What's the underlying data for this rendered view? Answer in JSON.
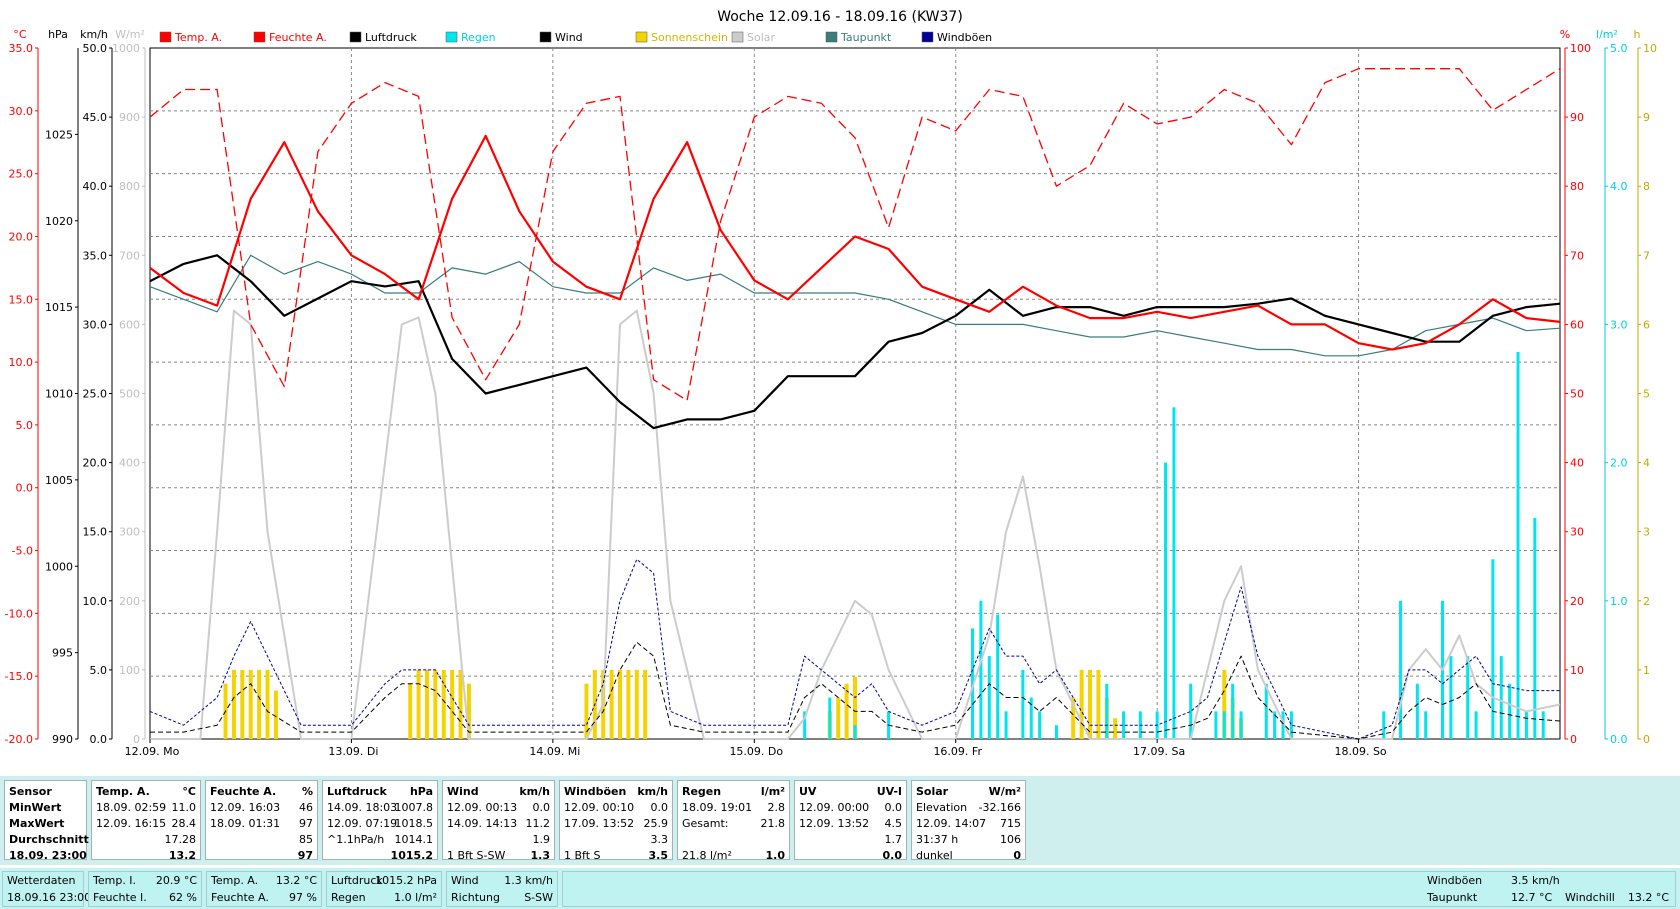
{
  "chart_data": {
    "type": "line",
    "title": "Woche 12.09.16 - 18.09.16 (KW37)",
    "x_range_hours": [
      0,
      168
    ],
    "x_tick_labels": [
      "12.09. Mo",
      "13.09. Di",
      "14.09. Mi",
      "15.09. Do",
      "16.09. Fr",
      "17.09. Sa",
      "18.09. So"
    ],
    "legend": [
      {
        "name": "Temp. A.",
        "color": "#ff0000"
      },
      {
        "name": "Feuchte A.",
        "color": "#ff0000"
      },
      {
        "name": "Luftdruck",
        "color": "#000000"
      },
      {
        "name": "Regen",
        "color": "#00e5ee"
      },
      {
        "name": "Wind",
        "color": "#000000"
      },
      {
        "name": "Sonnenschein",
        "color": "#f5d300"
      },
      {
        "name": "Solar",
        "color": "#cccccc"
      },
      {
        "name": "Taupunkt",
        "color": "#3a7d7d"
      },
      {
        "name": "Windböen",
        "color": "#000099"
      }
    ],
    "axes": {
      "temp": {
        "unit": "°C",
        "range": [
          -20,
          35
        ],
        "ticks": [
          "35.0",
          "30.0",
          "25.0",
          "20.0",
          "15.0",
          "10.0",
          "5.0",
          "0.0",
          "-5.0",
          "-10.0",
          "-15.0",
          "-20.0"
        ]
      },
      "pressure": {
        "unit": "hPa",
        "range": [
          990,
          1030
        ],
        "ticks": [
          "1025",
          "1020",
          "1015",
          "1010",
          "1005",
          "1000",
          "995",
          "990"
        ]
      },
      "wind": {
        "unit": "km/h",
        "range": [
          0,
          50
        ],
        "ticks": [
          "50.0",
          "45.0",
          "40.0",
          "35.0",
          "30.0",
          "25.0",
          "20.0",
          "15.0",
          "10.0",
          "5.0",
          "0.0"
        ]
      },
      "solar": {
        "unit": "W/m²",
        "range": [
          0,
          1000
        ],
        "ticks": [
          "1000",
          "900",
          "800",
          "700",
          "600",
          "500",
          "400",
          "300",
          "200",
          "100",
          "0"
        ]
      },
      "humidity": {
        "unit": "%",
        "range": [
          0,
          100
        ],
        "ticks": [
          "100",
          "90",
          "80",
          "70",
          "60",
          "50",
          "40",
          "30",
          "20",
          "10",
          "0"
        ]
      },
      "rain": {
        "unit": "l/m²",
        "range": [
          0,
          5
        ],
        "ticks": [
          "5.0",
          "4.0",
          "3.0",
          "2.0",
          "1.0",
          "0.0"
        ]
      },
      "sun": {
        "unit": "h",
        "range": [
          0,
          10
        ],
        "ticks": [
          "10",
          "9",
          "8",
          "7",
          "6",
          "5",
          "4",
          "3",
          "2",
          "1",
          "0"
        ]
      }
    },
    "series": [
      {
        "name": "Temp. A.",
        "unit": "°C",
        "x": [
          0,
          4,
          8,
          12,
          16,
          20,
          24,
          28,
          32,
          36,
          40,
          44,
          48,
          52,
          56,
          60,
          64,
          68,
          72,
          76,
          80,
          84,
          88,
          92,
          96,
          100,
          104,
          108,
          112,
          116,
          120,
          124,
          128,
          132,
          136,
          140,
          144,
          148,
          152,
          156,
          160,
          164,
          168
        ],
        "y": [
          17.5,
          15.5,
          14.5,
          23,
          27.5,
          22,
          18.5,
          17,
          15,
          23,
          28,
          22,
          18,
          16,
          15,
          23,
          27.5,
          20.5,
          16.5,
          15,
          17.5,
          20,
          19,
          16,
          15,
          14,
          16,
          14.5,
          13.5,
          13.5,
          14,
          13.5,
          14,
          14.5,
          13,
          13,
          11.5,
          11,
          11.5,
          13,
          15,
          13.5,
          13.2
        ]
      },
      {
        "name": "Feuchte A.",
        "unit": "%",
        "x": [
          0,
          4,
          8,
          12,
          16,
          20,
          24,
          28,
          32,
          36,
          40,
          44,
          48,
          52,
          56,
          60,
          64,
          68,
          72,
          76,
          80,
          84,
          88,
          92,
          96,
          100,
          104,
          108,
          112,
          116,
          120,
          124,
          128,
          132,
          136,
          140,
          144,
          148,
          152,
          156,
          160,
          164,
          168
        ],
        "y": [
          90,
          94,
          94,
          60,
          51,
          85,
          92,
          95,
          93,
          61,
          52,
          60,
          85,
          92,
          93,
          52,
          49,
          75,
          90,
          93,
          92,
          87,
          74,
          90,
          88,
          94,
          93,
          80,
          83,
          92,
          89,
          90,
          94,
          92,
          86,
          95,
          97,
          97,
          97,
          97,
          91,
          94,
          97
        ]
      },
      {
        "name": "Luftdruck",
        "unit": "hPa",
        "x": [
          0,
          4,
          8,
          12,
          16,
          20,
          24,
          28,
          32,
          36,
          40,
          44,
          48,
          52,
          56,
          60,
          64,
          68,
          72,
          76,
          80,
          84,
          88,
          92,
          96,
          100,
          104,
          108,
          112,
          116,
          120,
          124,
          128,
          132,
          136,
          140,
          144,
          148,
          152,
          156,
          160,
          164,
          168
        ],
        "y": [
          1016.5,
          1017.5,
          1018,
          1016.5,
          1014.5,
          1015.5,
          1016.5,
          1016.2,
          1016.5,
          1012,
          1010,
          1010.5,
          1011,
          1011.5,
          1009.5,
          1008,
          1008.5,
          1008.5,
          1009,
          1011,
          1011,
          1011,
          1013,
          1013.5,
          1014.5,
          1016,
          1014.5,
          1015,
          1015,
          1014.5,
          1015,
          1015,
          1015,
          1015.2,
          1015.5,
          1014.5,
          1014,
          1013.5,
          1013,
          1013,
          1014.5,
          1015,
          1015.2
        ]
      },
      {
        "name": "Taupunkt",
        "unit": "°C",
        "x": [
          0,
          4,
          8,
          12,
          16,
          20,
          24,
          28,
          32,
          36,
          40,
          44,
          48,
          52,
          56,
          60,
          64,
          68,
          72,
          76,
          80,
          84,
          88,
          92,
          96,
          100,
          104,
          108,
          112,
          116,
          120,
          124,
          128,
          132,
          136,
          140,
          144,
          148,
          152,
          156,
          160,
          164,
          168
        ],
        "y": [
          16,
          15,
          14,
          18.5,
          17,
          18,
          17,
          15.5,
          15.5,
          17.5,
          17,
          18,
          16,
          15.5,
          15.5,
          17.5,
          16.5,
          17,
          15.5,
          15.5,
          15.5,
          15.5,
          15,
          14,
          13,
          13,
          13,
          12.5,
          12,
          12,
          12.5,
          12,
          11.5,
          11,
          11,
          10.5,
          10.5,
          11,
          12.5,
          13,
          13.5,
          12.5,
          12.7
        ]
      },
      {
        "name": "Solar",
        "unit": "W/m²",
        "x": [
          0,
          6,
          8,
          10,
          12,
          14,
          18,
          24,
          28,
          30,
          32,
          34,
          38,
          44,
          48,
          52,
          54,
          56,
          58,
          60,
          62,
          66,
          72,
          76,
          78,
          80,
          82,
          84,
          86,
          88,
          92,
          96,
          100,
          102,
          104,
          106,
          108,
          112,
          120,
          124,
          126,
          128,
          130,
          132,
          136,
          144,
          148,
          150,
          152,
          154,
          156,
          158,
          160,
          164,
          168
        ],
        "y": [
          0,
          0,
          300,
          620,
          600,
          300,
          0,
          0,
          400,
          600,
          610,
          500,
          0,
          0,
          0,
          0,
          50,
          600,
          620,
          500,
          200,
          0,
          0,
          0,
          30,
          100,
          150,
          200,
          180,
          100,
          0,
          0,
          150,
          300,
          380,
          250,
          100,
          0,
          0,
          0,
          100,
          200,
          250,
          100,
          0,
          0,
          0,
          100,
          130,
          100,
          150,
          80,
          60,
          40,
          50
        ]
      },
      {
        "name": "Wind",
        "unit": "km/h",
        "x": [
          0,
          4,
          8,
          10,
          12,
          14,
          18,
          24,
          28,
          30,
          32,
          34,
          38,
          44,
          48,
          52,
          54,
          56,
          58,
          60,
          62,
          66,
          72,
          76,
          78,
          80,
          82,
          84,
          86,
          88,
          92,
          96,
          100,
          102,
          104,
          106,
          108,
          112,
          120,
          124,
          126,
          128,
          130,
          132,
          136,
          144,
          148,
          150,
          152,
          154,
          156,
          158,
          160,
          164,
          168
        ],
        "y": [
          0.5,
          0.5,
          1,
          3,
          4,
          2,
          0.5,
          0.5,
          3,
          4,
          4,
          3.5,
          0.5,
          0.5,
          0.5,
          0.5,
          2,
          5,
          7,
          6,
          1,
          0.5,
          0.5,
          0.5,
          3,
          4,
          3,
          2,
          2,
          1,
          0.5,
          1,
          4,
          3,
          3,
          2,
          3,
          0.5,
          0.5,
          1,
          1.5,
          3.5,
          6,
          3,
          0.5,
          0,
          0.5,
          2,
          3,
          2.5,
          3,
          4,
          2,
          1.5,
          1.3
        ]
      },
      {
        "name": "Windböen",
        "unit": "km/h",
        "x": [
          0,
          4,
          8,
          10,
          12,
          14,
          18,
          24,
          28,
          30,
          32,
          34,
          38,
          44,
          48,
          52,
          54,
          56,
          58,
          60,
          62,
          66,
          72,
          76,
          78,
          80,
          82,
          84,
          86,
          88,
          92,
          96,
          100,
          102,
          104,
          106,
          108,
          112,
          120,
          124,
          126,
          128,
          130,
          132,
          136,
          144,
          148,
          150,
          152,
          154,
          156,
          158,
          160,
          164,
          168
        ],
        "y": [
          2,
          1,
          3,
          6,
          8.5,
          6,
          1,
          1,
          4,
          5,
          5,
          5,
          1,
          1,
          1,
          1,
          4,
          10,
          13,
          12,
          2,
          1,
          1,
          1,
          6,
          5,
          4,
          3,
          4,
          2,
          1,
          2,
          8,
          6,
          6,
          4,
          5,
          1,
          1,
          2,
          3,
          7,
          11,
          6,
          1,
          0,
          1,
          5,
          5,
          4,
          5,
          6,
          4,
          3.5,
          3.5
        ]
      }
    ],
    "sunshine_bars": {
      "name": "Sonnenschein",
      "unit": "h",
      "x": [
        9,
        10,
        11,
        12,
        13,
        14,
        15,
        31,
        32,
        33,
        34,
        35,
        36,
        37,
        38,
        52,
        53,
        54,
        55,
        56,
        57,
        58,
        59,
        81,
        82,
        83,
        84,
        110,
        111,
        112,
        113,
        114,
        115,
        128,
        129,
        130
      ],
      "y": [
        0.8,
        1,
        1,
        1,
        1,
        1,
        0.7,
        0.8,
        1,
        1,
        1,
        1,
        1,
        1,
        0.8,
        0.8,
        1,
        1,
        1,
        1,
        1,
        1,
        1,
        0.4,
        0.6,
        0.8,
        0.9,
        0.6,
        1,
        1,
        1,
        0.6,
        0.3,
        1,
        0.6,
        0.3
      ]
    },
    "rain_bars": {
      "name": "Regen",
      "unit": "l/m²",
      "x": [
        78,
        81,
        84,
        88,
        98,
        99,
        100,
        101,
        102,
        104,
        105,
        106,
        108,
        114,
        116,
        118,
        120,
        121,
        122,
        124,
        127,
        128,
        129,
        130,
        133,
        134,
        135,
        136,
        147,
        149,
        151,
        152,
        154,
        155,
        157,
        158,
        160,
        161,
        162,
        163,
        164,
        165,
        166
      ],
      "y": [
        0.2,
        0.3,
        0.1,
        0.2,
        0.8,
        1.0,
        0.6,
        0.9,
        0.2,
        0.5,
        0.3,
        0.2,
        0.1,
        0.4,
        0.2,
        0.2,
        0.2,
        2.0,
        2.4,
        0.4,
        0.2,
        0.2,
        0.4,
        0.2,
        0.4,
        0.2,
        0.2,
        0.2,
        0.2,
        1.0,
        0.4,
        0.2,
        1.0,
        0.6,
        0.6,
        0.2,
        1.3,
        0.6,
        0.4,
        2.8,
        0.2,
        1.6,
        0.2
      ]
    }
  },
  "stats": {
    "sensor": {
      "head": "Sensor",
      "min": "MinWert",
      "max": "MaxWert",
      "avg": "Durchschnitt",
      "now": "18.09.  23:00"
    },
    "temp": {
      "head": "Temp. A.",
      "unit": "°C",
      "min_t": "18.09.  02:59",
      "min_v": "11.0",
      "max_t": "12.09.  16:15",
      "max_v": "28.4",
      "avg_v": "17.28",
      "now_v": "13.2"
    },
    "hum": {
      "head": "Feuchte A.",
      "unit": "%",
      "min_t": "12.09.  16:03",
      "min_v": "46",
      "max_t": "18.09.  01:31",
      "max_v": "97",
      "avg_v": "85",
      "now_v": "97"
    },
    "press": {
      "head": "Luftdruck",
      "unit": "hPa",
      "min_t": "14.09.  18:03",
      "min_v": "1007.8",
      "max_t": "12.09.  07:19",
      "max_v": "1018.5",
      "avg_t": "^1.1hPa/h",
      "avg_v": "1014.1",
      "now_v": "1015.2"
    },
    "wind": {
      "head": "Wind",
      "unit": "km/h",
      "min_t": "12.09.  00:13",
      "min_v": "0.0",
      "max_t": "14.09.  14:13",
      "max_v": "11.2",
      "avg_v": "1.9",
      "now_t": "1 Bft S-SW",
      "now_v": "1.3"
    },
    "gust": {
      "head": "Windböen",
      "unit": "km/h",
      "min_t": "12.09.  00:10",
      "min_v": "0.0",
      "max_t": "17.09.  13:52",
      "max_v": "25.9",
      "avg_v": "3.3",
      "now_t": "1 Bft S",
      "now_v": "3.5"
    },
    "rain": {
      "head": "Regen",
      "unit": "l/m²",
      "min_t": "18.09.  19:01",
      "min_v": "2.8",
      "max_t": "Gesamt:",
      "max_v": "21.8",
      "now_t": "21.8 l/m²",
      "now_v": "1.0"
    },
    "uv": {
      "head": "UV",
      "unit": "UV-I",
      "min_t": "12.09.  00:00",
      "min_v": "0.0",
      "max_t": "12.09.  13:52",
      "max_v": "4.5",
      "avg_v": "1.7",
      "now_v": "0.0"
    },
    "solar": {
      "head": "Solar",
      "unit": "W/m²",
      "min_t": "Elevation",
      "min_v": "-32.166",
      "max_t": "12.09.  14:07",
      "max_v": "715",
      "avg_t": "31:37 h",
      "avg_v": "106",
      "now_t": "dunkel",
      "now_v": "0"
    }
  },
  "status": {
    "wd_label": "Wetterdaten",
    "wd_time": "18.09.16 23:00",
    "ti_label": "Temp. I.",
    "ti_value": "20.9 °C",
    "fi_label": "Feuchte I.",
    "fi_value": "62 %",
    "ta_label": "Temp. A.",
    "ta_value": "13.2 °C",
    "fa_label": "Feuchte A.",
    "fa_value": "97 %",
    "lp_label": "Luftdruck",
    "lp_value": "1015.2 hPa",
    "rg_label": "Regen",
    "rg_value": "1.0 l/m²",
    "wi_label": "Wind",
    "wi_value": "1.3 km/h",
    "ri_label": "Richtung",
    "ri_value": "S-SW",
    "wb_label": "Windböen",
    "wb_value": "3.5 km/h",
    "tp_label": "Taupunkt",
    "tp_value": "12.7 °C",
    "wc_label": "Windchill",
    "wc_value": "13.2 °C"
  }
}
